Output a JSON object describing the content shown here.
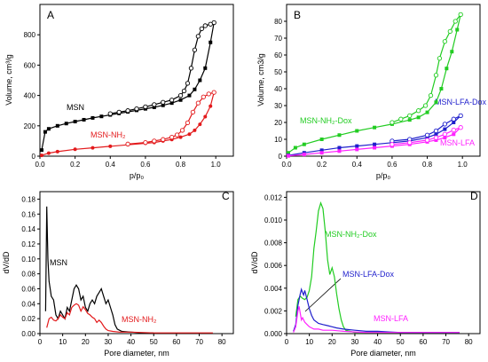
{
  "chart_data": [
    {
      "type": "line",
      "panel_label": "A",
      "xlabel": "p/p₀",
      "ylabel": "Volume, cm³/g",
      "xlim": [
        0,
        1.1
      ],
      "ylim": [
        0,
        1000
      ],
      "xticks": [
        "0.0",
        "0.2",
        "0.4",
        "0.6",
        "0.8",
        "1.0"
      ],
      "yticks": [
        "0",
        "200",
        "400",
        "600",
        "800"
      ],
      "series": [
        {
          "name": "MSN",
          "role": "adsorption",
          "color": "#000000",
          "marker": "filled-square",
          "x": [
            0.01,
            0.03,
            0.05,
            0.1,
            0.15,
            0.2,
            0.25,
            0.3,
            0.35,
            0.4,
            0.45,
            0.5,
            0.55,
            0.6,
            0.65,
            0.7,
            0.75,
            0.8,
            0.85,
            0.88,
            0.91,
            0.94,
            0.97,
            0.99
          ],
          "y": [
            40,
            160,
            180,
            200,
            215,
            228,
            240,
            252,
            262,
            272,
            282,
            292,
            302,
            312,
            322,
            335,
            350,
            370,
            400,
            440,
            500,
            580,
            750,
            880
          ]
        },
        {
          "name": "MSN",
          "role": "desorption",
          "color": "#000000",
          "marker": "open-circle",
          "x": [
            0.99,
            0.97,
            0.94,
            0.92,
            0.9,
            0.88,
            0.86,
            0.84,
            0.82,
            0.8,
            0.75,
            0.7,
            0.65,
            0.6,
            0.55,
            0.5,
            0.45,
            0.4
          ],
          "y": [
            880,
            870,
            860,
            840,
            790,
            700,
            580,
            480,
            430,
            400,
            370,
            355,
            340,
            325,
            312,
            300,
            290,
            280
          ]
        },
        {
          "name": "MSN-NH₂",
          "role": "adsorption",
          "color": "#e31a1c",
          "marker": "filled-circle",
          "x": [
            0.01,
            0.05,
            0.1,
            0.2,
            0.3,
            0.4,
            0.5,
            0.6,
            0.65,
            0.7,
            0.75,
            0.8,
            0.85,
            0.88,
            0.91,
            0.94,
            0.97,
            0.99
          ],
          "y": [
            5,
            20,
            30,
            45,
            55,
            65,
            75,
            85,
            90,
            100,
            110,
            125,
            145,
            170,
            210,
            260,
            330,
            420
          ]
        },
        {
          "name": "MSN-NH₂",
          "role": "desorption",
          "color": "#e31a1c",
          "marker": "open-circle",
          "x": [
            0.99,
            0.96,
            0.93,
            0.9,
            0.87,
            0.84,
            0.81,
            0.78,
            0.75,
            0.7,
            0.65,
            0.6,
            0.5
          ],
          "y": [
            420,
            410,
            390,
            350,
            290,
            220,
            170,
            140,
            125,
            110,
            100,
            90,
            80
          ]
        }
      ]
    },
    {
      "type": "line",
      "panel_label": "B",
      "xlabel": "p/p₀",
      "ylabel": "Volume, cm3/g",
      "xlim": [
        0,
        1.1
      ],
      "ylim": [
        0,
        90
      ],
      "xticks": [
        "0.0",
        "0.2",
        "0.4",
        "0.6",
        "0.8",
        "1.0"
      ],
      "yticks": [
        "0",
        "10",
        "20",
        "30",
        "40",
        "50",
        "60",
        "70",
        "80"
      ],
      "series": [
        {
          "name": "MSN-NH₂-Dox",
          "role": "adsorption",
          "color": "#22cc22",
          "marker": "filled-square",
          "x": [
            0.01,
            0.05,
            0.1,
            0.2,
            0.3,
            0.4,
            0.5,
            0.6,
            0.7,
            0.75,
            0.8,
            0.85,
            0.88,
            0.91,
            0.94,
            0.97,
            0.99
          ],
          "y": [
            2,
            5,
            7,
            10,
            12.5,
            15,
            17,
            19,
            21.5,
            23,
            26,
            32,
            40,
            52,
            62,
            75,
            84
          ]
        },
        {
          "name": "MSN-NH₂-Dox",
          "role": "desorption",
          "color": "#22cc22",
          "marker": "open-circle",
          "x": [
            0.99,
            0.96,
            0.93,
            0.9,
            0.87,
            0.85,
            0.82,
            0.79,
            0.75,
            0.7,
            0.65,
            0.6
          ],
          "y": [
            84,
            80,
            74,
            68,
            58,
            48,
            36,
            30,
            27,
            24,
            22,
            20
          ]
        },
        {
          "name": "MSN-LFA-Dox",
          "role": "adsorption",
          "color": "#1f1fcc",
          "marker": "filled-square",
          "x": [
            0.01,
            0.1,
            0.2,
            0.3,
            0.4,
            0.5,
            0.6,
            0.7,
            0.8,
            0.85,
            0.9,
            0.95,
            0.99
          ],
          "y": [
            0.5,
            2,
            3.5,
            5,
            6,
            7,
            8,
            9,
            11,
            13,
            16,
            20,
            24
          ]
        },
        {
          "name": "MSN-LFA-Dox",
          "role": "desorption",
          "color": "#1f1fcc",
          "marker": "open-circle",
          "x": [
            0.99,
            0.95,
            0.9,
            0.85,
            0.8,
            0.7,
            0.6
          ],
          "y": [
            24,
            22,
            19,
            15,
            12.5,
            10,
            9
          ]
        },
        {
          "name": "MSN-LFA",
          "role": "adsorption",
          "color": "#ff22ff",
          "marker": "filled-square",
          "x": [
            0.01,
            0.1,
            0.2,
            0.3,
            0.4,
            0.5,
            0.6,
            0.7,
            0.8,
            0.85,
            0.9,
            0.95,
            0.99
          ],
          "y": [
            0.2,
            1,
            2,
            3,
            4,
            5,
            6,
            7,
            8.5,
            9.5,
            11,
            13,
            17
          ]
        },
        {
          "name": "MSN-LFA",
          "role": "desorption",
          "color": "#ff22ff",
          "marker": "open-circle",
          "x": [
            0.99,
            0.95,
            0.9,
            0.85,
            0.8,
            0.7,
            0.6
          ],
          "y": [
            17,
            15.5,
            13,
            11,
            9.5,
            8,
            7
          ]
        }
      ]
    },
    {
      "type": "line",
      "panel_label": "C",
      "xlabel": "Pore diameter, nm",
      "ylabel": "dV/dD",
      "xlim": [
        0,
        85
      ],
      "ylim": [
        0,
        0.19
      ],
      "xticks": [
        "0",
        "10",
        "20",
        "30",
        "40",
        "50",
        "60",
        "70",
        "80"
      ],
      "yticks": [
        "0.00",
        "0.02",
        "0.04",
        "0.06",
        "0.08",
        "0.10",
        "0.12",
        "0.14",
        "0.16",
        "0.18"
      ],
      "series": [
        {
          "name": "MSN",
          "color": "#000000",
          "x": [
            2.5,
            3,
            3.5,
            4,
            5,
            6,
            7,
            8,
            9,
            10,
            11,
            12,
            13,
            14,
            15,
            16,
            17,
            18,
            19,
            20,
            21,
            22,
            23,
            24,
            25,
            26,
            27,
            28,
            29,
            30,
            31,
            32,
            33,
            34,
            36,
            40,
            45,
            50
          ],
          "y": [
            0.03,
            0.17,
            0.1,
            0.07,
            0.05,
            0.045,
            0.025,
            0.02,
            0.03,
            0.025,
            0.02,
            0.035,
            0.03,
            0.045,
            0.06,
            0.065,
            0.06,
            0.045,
            0.05,
            0.035,
            0.03,
            0.04,
            0.045,
            0.04,
            0.05,
            0.055,
            0.06,
            0.05,
            0.04,
            0.045,
            0.035,
            0.025,
            0.012,
            0.006,
            0.003,
            0.002,
            0.001,
            0.001
          ]
        },
        {
          "name": "MSN-NH₂",
          "color": "#e31a1c",
          "x": [
            3,
            4,
            5,
            6,
            7,
            8,
            9,
            10,
            11,
            12,
            13,
            14,
            15,
            16,
            17,
            18,
            19,
            20,
            21,
            22,
            23,
            24,
            25,
            26,
            27,
            28,
            29,
            30,
            32,
            35,
            40,
            50,
            60,
            70,
            76
          ],
          "y": [
            0.008,
            0.02,
            0.022,
            0.018,
            0.017,
            0.02,
            0.025,
            0.022,
            0.02,
            0.028,
            0.025,
            0.035,
            0.038,
            0.04,
            0.038,
            0.03,
            0.036,
            0.032,
            0.027,
            0.025,
            0.022,
            0.02,
            0.015,
            0.018,
            0.015,
            0.01,
            0.006,
            0.004,
            0.003,
            0.002,
            0.002,
            0.001,
            0.001,
            0.001,
            0.001
          ]
        }
      ]
    },
    {
      "type": "line",
      "panel_label": "D",
      "xlabel": "Pore diameter, nm",
      "ylabel": "dV/dD",
      "xlim": [
        0,
        85
      ],
      "ylim": [
        0,
        0.0125
      ],
      "xticks": [
        "0",
        "10",
        "20",
        "30",
        "40",
        "50",
        "60",
        "70",
        "80"
      ],
      "yticks": [
        "0.000",
        "0.002",
        "0.004",
        "0.006",
        "0.008",
        "0.010",
        "0.012"
      ],
      "series": [
        {
          "name": "MSN-NH₂-Dox",
          "color": "#22cc22",
          "x": [
            4,
            5,
            6,
            7,
            8,
            9,
            10,
            11,
            12,
            13,
            14,
            15,
            16,
            17,
            18,
            19,
            20,
            21,
            22,
            23,
            24,
            25,
            26,
            28,
            30,
            35,
            40,
            50,
            60,
            70,
            76
          ],
          "y": [
            0.0015,
            0.003,
            0.0033,
            0.0031,
            0.003,
            0.0032,
            0.0038,
            0.005,
            0.0075,
            0.009,
            0.0108,
            0.0115,
            0.011,
            0.009,
            0.0065,
            0.0052,
            0.0058,
            0.005,
            0.0035,
            0.0022,
            0.0012,
            0.0006,
            0.0003,
            0.0002,
            0.0001,
            0.0001,
            0.0001,
            0.0001,
            0.0001,
            0.0001,
            0.0001
          ]
        },
        {
          "name": "MSN-LFA-Dox",
          "color": "#1f1fcc",
          "x": [
            3,
            4,
            5,
            6,
            6.5,
            7,
            7.5,
            8,
            9,
            10,
            11,
            12,
            14,
            16,
            18,
            20,
            22,
            25,
            30,
            35,
            40,
            45,
            50,
            60,
            70,
            76
          ],
          "y": [
            0.0002,
            0.0008,
            0.0025,
            0.0035,
            0.0039,
            0.0036,
            0.0034,
            0.0038,
            0.003,
            0.0022,
            0.0016,
            0.0012,
            0.0009,
            0.0008,
            0.0007,
            0.0006,
            0.0005,
            0.0004,
            0.0003,
            0.0002,
            0.0002,
            0.00015,
            0.0001,
            0.0001,
            0.0001,
            0.0001
          ]
        },
        {
          "name": "MSN-LFA",
          "color": "#ff22ff",
          "x": [
            3,
            4,
            5,
            5.5,
            6,
            6.5,
            7,
            8,
            9,
            10,
            11,
            12,
            14,
            16,
            18,
            20,
            25,
            30,
            35,
            40,
            50,
            60,
            70,
            76
          ],
          "y": [
            0.0001,
            0.0006,
            0.002,
            0.0024,
            0.0018,
            0.0012,
            0.0014,
            0.001,
            0.0008,
            0.0006,
            0.0005,
            0.0004,
            0.0004,
            0.0003,
            0.0003,
            0.0003,
            0.0002,
            0.00015,
            0.0001,
            0.0001,
            0.0001,
            0.0001,
            0.0001,
            0.0001
          ]
        }
      ]
    }
  ],
  "annotations": {
    "A_msn": "MSN",
    "A_msnnh2": "MSN-NH₂",
    "B_nh2dox": "MSN-NH₂-Dox",
    "B_lfadox": "MSN-LFA-Dox",
    "B_lfa": "MSN-LFA",
    "C_msn": "MSN",
    "C_msnnh2": "MSN-NH₂",
    "D_nh2dox": "MSN-NH₂-Dox",
    "D_lfadox": "MSN-LFA-Dox",
    "D_lfa": "MSN-LFA"
  }
}
